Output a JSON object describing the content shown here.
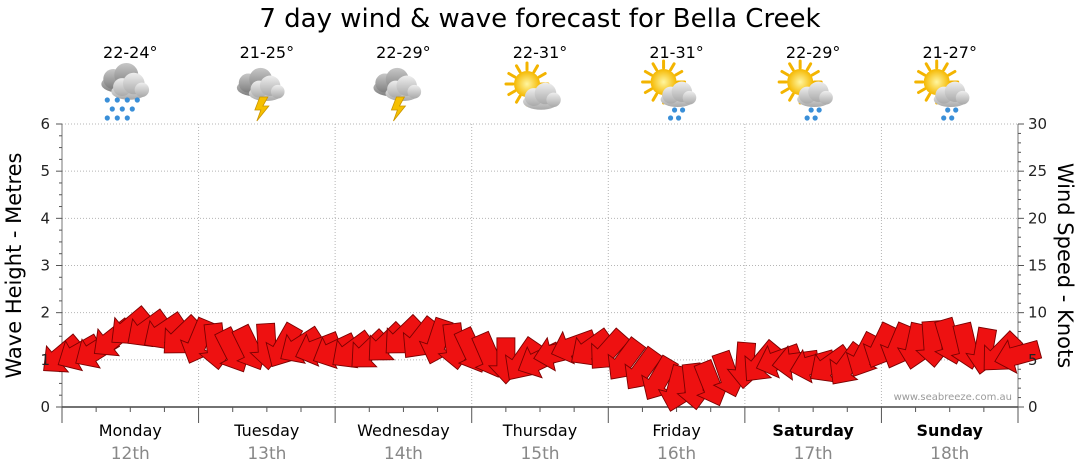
{
  "chart_data": {
    "type": "line",
    "title": "7 day wind & wave forecast for Bella Creek",
    "ylabel_left": "Wave Height - Metres",
    "ylabel_right": "Wind Speed - Knots",
    "ylim_left": [
      0,
      6
    ],
    "ylim_right": [
      0,
      30
    ],
    "yticks_left": [
      "0",
      "1",
      "2",
      "3",
      "4",
      "5",
      "6"
    ],
    "yticks_right": [
      "0",
      "5",
      "10",
      "15",
      "20",
      "25",
      "30"
    ],
    "grid": true,
    "days": [
      {
        "name": "Monday",
        "date": "12th",
        "bold": false,
        "temp": "22-24°",
        "icon": "rain-cloud-icon"
      },
      {
        "name": "Tuesday",
        "date": "13th",
        "bold": false,
        "temp": "21-25°",
        "icon": "thunderstorm-icon"
      },
      {
        "name": "Wednesday",
        "date": "14th",
        "bold": false,
        "temp": "22-29°",
        "icon": "thunderstorm-icon"
      },
      {
        "name": "Thursday",
        "date": "15th",
        "bold": false,
        "temp": "22-31°",
        "icon": "partly-cloudy-icon"
      },
      {
        "name": "Friday",
        "date": "16th",
        "bold": false,
        "temp": "21-31°",
        "icon": "sun-shower-icon"
      },
      {
        "name": "Saturday",
        "date": "17th",
        "bold": true,
        "temp": "22-29°",
        "icon": "sun-shower-icon"
      },
      {
        "name": "Sunday",
        "date": "18th",
        "bold": true,
        "temp": "21-27°",
        "icon": "sun-shower-icon"
      }
    ],
    "series": [
      {
        "name": "Wind",
        "unit": "knots",
        "color": "#ee1111",
        "x_day_fraction": [
          0.0,
          0.25,
          0.5,
          0.75,
          1.0,
          1.25,
          1.5,
          1.75,
          2.0,
          2.25,
          2.5,
          2.75,
          3.0,
          3.25,
          3.5,
          3.75,
          4.0,
          4.25,
          4.5,
          4.75,
          5.0,
          5.25,
          5.5,
          5.75,
          6.0,
          6.25,
          6.5,
          6.75,
          7.0
        ],
        "values": [
          5.5,
          6.0,
          8.5,
          8.0,
          7.0,
          6.0,
          6.5,
          6.5,
          6.0,
          6.0,
          7.5,
          7.0,
          6.0,
          5.0,
          5.0,
          6.5,
          6.0,
          4.0,
          2.0,
          2.5,
          4.5,
          5.0,
          4.5,
          4.5,
          6.5,
          6.5,
          7.0,
          6.0,
          5.5
        ]
      }
    ],
    "watermark": "www.seabreeze.com.au"
  }
}
